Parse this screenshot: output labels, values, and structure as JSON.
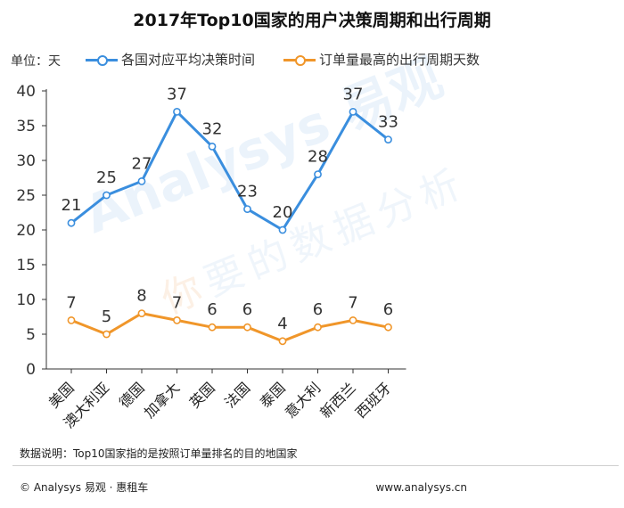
{
  "title": "2017年Top10国家的用户决策周期和出行周期",
  "unit_label": "单位：天",
  "footnote": "数据说明：Top10国家指的是按照订单量排名的目的地国家",
  "copyright": "© Analysys 易观 · 惠租车",
  "website": "www.analysys.cn",
  "watermark": {
    "brand": "Analysys 易观",
    "slogan_first": "你",
    "slogan_rest": "要的数据分析"
  },
  "colors": {
    "series_blue": "#3a8ede",
    "series_orange": "#f0962a",
    "axis": "#333333"
  },
  "chart_data": {
    "type": "line",
    "categories": [
      "美国",
      "澳大利亚",
      "德国",
      "加拿大",
      "英国",
      "法国",
      "泰国",
      "意大利",
      "新西兰",
      "西班牙"
    ],
    "ylim": [
      0,
      40
    ],
    "yticks": [
      0,
      5,
      10,
      15,
      20,
      25,
      30,
      35,
      40
    ],
    "grid": false,
    "legend_position": "top",
    "series": [
      {
        "name": "各国对应平均决策时间",
        "color": "#3a8ede",
        "values": [
          21,
          25,
          27,
          37,
          32,
          23,
          20,
          28,
          37,
          33
        ]
      },
      {
        "name": "订单量最高的出行周期天数",
        "color": "#f0962a",
        "values": [
          7,
          5,
          8,
          7,
          6,
          6,
          4,
          6,
          7,
          6
        ]
      }
    ]
  }
}
